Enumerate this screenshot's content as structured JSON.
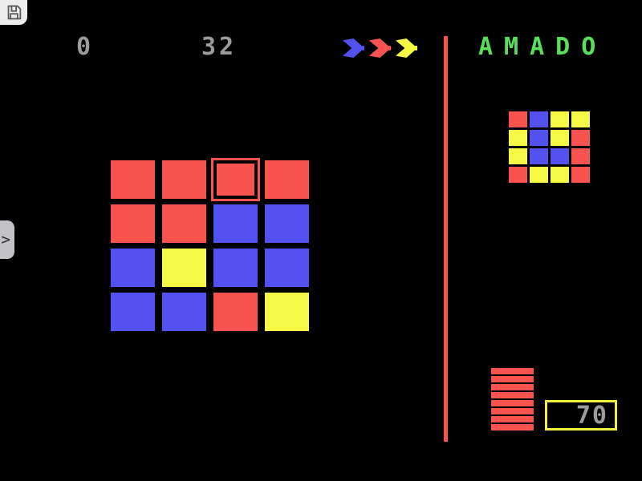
{
  "title": {
    "text": "AMADO",
    "color": "#58e05a"
  },
  "toolbar": {
    "save_button": {
      "icon": "floppy-disk"
    }
  },
  "hud": {
    "counter_left": "0",
    "counter_right": "32",
    "color_order_arrows": [
      {
        "name": "blue-arrow",
        "color": "#5351f0"
      },
      {
        "name": "red-arrow",
        "color": "#f9534f"
      },
      {
        "name": "yellow-arrow",
        "color": "#f7f746"
      }
    ]
  },
  "palette": {
    "red": "#f9534f",
    "blue": "#5351f0",
    "yellow": "#f7f746",
    "text_gray": "#9c9c9c",
    "divider_red": "#f9534f",
    "box_border_yellow": "#f2ee40"
  },
  "goal_grid": {
    "rows": [
      [
        "red",
        "blue",
        "yellow",
        "yellow"
      ],
      [
        "yellow",
        "blue",
        "yellow",
        "red"
      ],
      [
        "yellow",
        "blue",
        "blue",
        "red"
      ],
      [
        "red",
        "yellow",
        "yellow",
        "red"
      ]
    ]
  },
  "board_grid": {
    "rows": [
      [
        "red",
        "red",
        "red",
        "red"
      ],
      [
        "red",
        "red",
        "blue",
        "blue"
      ],
      [
        "blue",
        "yellow",
        "blue",
        "blue"
      ],
      [
        "blue",
        "blue",
        "red",
        "yellow"
      ]
    ],
    "cursor": {
      "row": 0,
      "col": 2
    }
  },
  "lives_stack": {
    "count": 8,
    "color": "#f9534f"
  },
  "score_box": {
    "value": "70"
  },
  "drawer_toggle": {
    "chevron": ">"
  }
}
